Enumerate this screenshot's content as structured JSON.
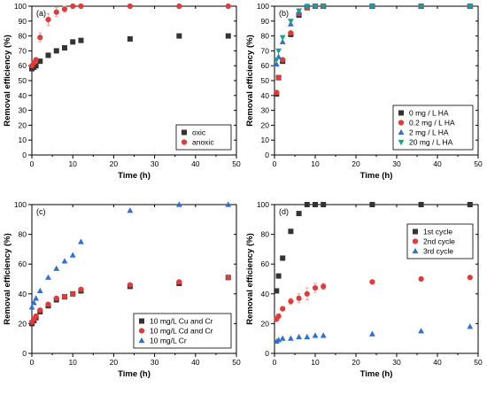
{
  "colors": {
    "black": "#333333",
    "red": "#e03a3a",
    "blue": "#2f6fd6",
    "green": "#19a38a",
    "errbar": "#f2a0a0"
  },
  "chart_data": [
    {
      "type": "scatter",
      "panel_label": "(a)",
      "xlabel": "Time (h)",
      "ylabel": "Removal efficiency (%)",
      "xlim": [
        0,
        50
      ],
      "ylim": [
        0,
        100
      ],
      "xticks": [
        0,
        10,
        20,
        30,
        40,
        50
      ],
      "yticks": [
        0,
        10,
        20,
        30,
        40,
        50,
        60,
        70,
        80,
        90,
        100
      ],
      "legend_position": "bottom-right",
      "series": [
        {
          "name": "oxic",
          "marker": "square",
          "color": "#333333",
          "x": [
            0,
            0.5,
            1,
            2,
            4,
            6,
            8,
            10,
            12,
            24,
            36,
            48
          ],
          "y": [
            58,
            59,
            60,
            63,
            67,
            70,
            72,
            76,
            77,
            78,
            80,
            80
          ]
        },
        {
          "name": "anoxic",
          "marker": "circle",
          "color": "#e03a3a",
          "x": [
            0,
            0.5,
            1,
            2,
            4,
            6,
            8,
            10,
            12,
            24,
            36,
            48
          ],
          "y": [
            60,
            62,
            64,
            79,
            91,
            96,
            98,
            100,
            100,
            100,
            100,
            100
          ],
          "err": [
            0,
            0,
            1,
            3,
            4,
            3,
            2,
            1,
            0,
            0,
            0,
            0
          ]
        }
      ]
    },
    {
      "type": "scatter",
      "panel_label": "(b)",
      "xlabel": "Time (h)",
      "ylabel": "Removal efficiency (%)",
      "xlim": [
        0,
        50
      ],
      "ylim": [
        0,
        100
      ],
      "xticks": [
        0,
        10,
        20,
        30,
        40,
        50
      ],
      "yticks": [
        0,
        10,
        20,
        30,
        40,
        50,
        60,
        70,
        80,
        90,
        100
      ],
      "legend_position": "bottom-right",
      "series": [
        {
          "name": "0 mg / L HA",
          "marker": "square",
          "color": "#333333",
          "x": [
            0.5,
            1,
            2,
            4,
            6,
            8,
            10,
            12,
            24,
            36,
            48
          ],
          "y": [
            41,
            52,
            63,
            81,
            94,
            99,
            100,
            100,
            100,
            100,
            100
          ]
        },
        {
          "name": "0.2 mg / L HA",
          "marker": "circle",
          "color": "#e03a3a",
          "x": [
            0.5,
            1,
            2,
            4,
            6,
            8,
            10,
            12,
            24,
            36,
            48
          ],
          "y": [
            42,
            52,
            64,
            82,
            95,
            99,
            100,
            100,
            100,
            100,
            100
          ]
        },
        {
          "name": "2 mg / L HA",
          "marker": "triangle-up",
          "color": "#2f6fd6",
          "x": [
            0.5,
            1,
            2,
            4,
            6,
            8,
            10,
            12,
            24,
            36,
            48
          ],
          "y": [
            61,
            66,
            76,
            88,
            96,
            100,
            100,
            100,
            100,
            100,
            100
          ]
        },
        {
          "name": "20 mg / L HA",
          "marker": "triangle-down",
          "color": "#19a38a",
          "x": [
            0.5,
            1,
            2,
            4,
            6,
            8,
            10,
            12,
            24,
            36,
            48
          ],
          "y": [
            64,
            70,
            79,
            90,
            97,
            100,
            100,
            100,
            100,
            100,
            100
          ]
        }
      ]
    },
    {
      "type": "scatter",
      "panel_label": "(c)",
      "xlabel": "Time (h)",
      "ylabel": "Removal efficiency (%)",
      "xlim": [
        0,
        50
      ],
      "ylim": [
        0,
        100
      ],
      "xticks": [
        0,
        10,
        20,
        30,
        40,
        50
      ],
      "yticks": [
        0,
        20,
        40,
        60,
        80,
        100
      ],
      "legend_position": "bottom-right",
      "series": [
        {
          "name": "10 mg/L Cu and Cr",
          "marker": "square",
          "color": "#333333",
          "x": [
            0,
            0.5,
            1,
            2,
            4,
            6,
            8,
            10,
            12,
            24,
            36,
            48
          ],
          "y": [
            20,
            22,
            24,
            28,
            32,
            36,
            38,
            40,
            42,
            45,
            47,
            51
          ]
        },
        {
          "name": "10 mg/L Cd and Cr",
          "marker": "circle",
          "color": "#e03a3a",
          "x": [
            0,
            0.5,
            1,
            2,
            4,
            6,
            8,
            10,
            12,
            24,
            36,
            48
          ],
          "y": [
            21,
            23,
            25,
            29,
            33,
            37,
            38,
            40,
            43,
            46,
            48,
            51
          ]
        },
        {
          "name": "10 mg/L  Cr",
          "marker": "triangle-up",
          "color": "#2f6fd6",
          "x": [
            0,
            0.5,
            1,
            2,
            4,
            6,
            8,
            10,
            12,
            24,
            36,
            48
          ],
          "y": [
            31,
            34,
            37,
            42,
            51,
            57,
            62,
            66,
            75,
            96,
            100,
            100
          ]
        }
      ]
    },
    {
      "type": "scatter",
      "panel_label": "(d)",
      "xlabel": "Time (h)",
      "ylabel": "Removal efficiency (%)",
      "xlim": [
        0,
        50
      ],
      "ylim": [
        0,
        100
      ],
      "xticks": [
        0,
        10,
        20,
        30,
        40,
        50
      ],
      "yticks": [
        0,
        20,
        40,
        60,
        80,
        100
      ],
      "legend_position": "top-right",
      "series": [
        {
          "name": "1st cycle",
          "marker": "square",
          "color": "#333333",
          "x": [
            0.5,
            1,
            2,
            4,
            6,
            8,
            10,
            12,
            24,
            36,
            48
          ],
          "y": [
            42,
            52,
            64,
            82,
            94,
            100,
            100,
            100,
            100,
            100,
            100
          ]
        },
        {
          "name": "2nd cycle",
          "marker": "circle",
          "color": "#e03a3a",
          "x": [
            0.5,
            1,
            2,
            4,
            6,
            8,
            10,
            12,
            24,
            36,
            48
          ],
          "y": [
            23,
            25,
            30,
            35,
            37,
            40,
            44,
            45,
            48,
            50,
            51
          ],
          "err": [
            0,
            0,
            1,
            2,
            3,
            4,
            3,
            2,
            0,
            0,
            0
          ]
        },
        {
          "name": "3rd cycle",
          "marker": "triangle-up",
          "color": "#2f6fd6",
          "x": [
            0.5,
            1,
            2,
            4,
            6,
            8,
            10,
            12,
            24,
            36,
            48
          ],
          "y": [
            8,
            9,
            10,
            10,
            11,
            11,
            12,
            12,
            13,
            15,
            18
          ]
        }
      ]
    }
  ]
}
